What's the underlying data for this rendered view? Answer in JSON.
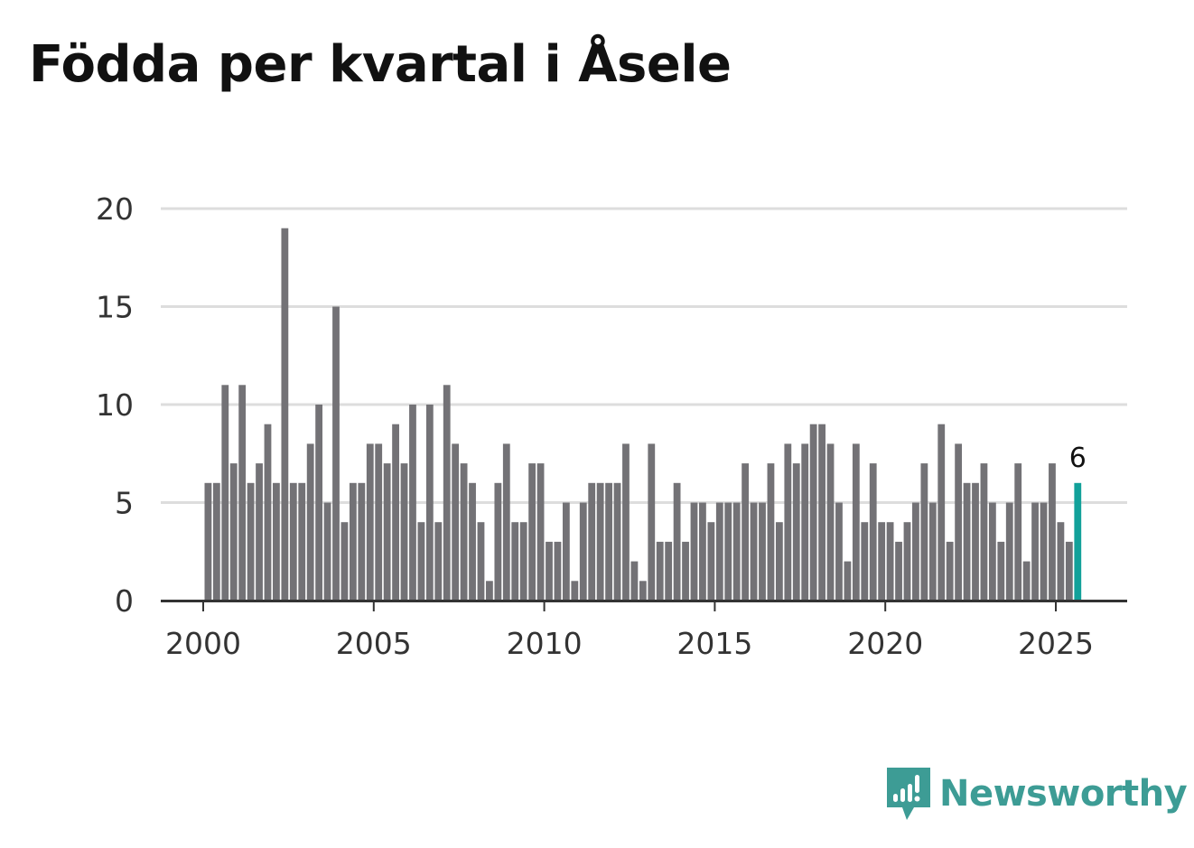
{
  "title": "Födda per kvartal i Åsele",
  "brand": {
    "name": "Newsworthy",
    "icon": "newsworthy-logo-icon",
    "color": "#3d9c95"
  },
  "colors": {
    "bar": "#737276",
    "highlight": "#12a19a",
    "grid": "#dddddd",
    "axis": "#333333"
  },
  "chart_data": {
    "type": "bar",
    "title": "Födda per kvartal i Åsele",
    "xlabel": "",
    "ylabel": "",
    "ylim": [
      0,
      20
    ],
    "yticks": [
      0,
      5,
      10,
      15,
      20
    ],
    "xticks": [
      "2000",
      "2005",
      "2010",
      "2015",
      "2020",
      "2025"
    ],
    "start": {
      "year": 2000,
      "quarter": 1
    },
    "grid": true,
    "series": [
      {
        "name": "Födda",
        "values": [
          6,
          6,
          11,
          7,
          11,
          6,
          7,
          9,
          6,
          19,
          6,
          6,
          8,
          10,
          5,
          15,
          4,
          6,
          6,
          8,
          8,
          7,
          9,
          7,
          10,
          4,
          10,
          4,
          11,
          8,
          7,
          6,
          4,
          1,
          6,
          8,
          4,
          4,
          7,
          7,
          3,
          3,
          5,
          1,
          5,
          6,
          6,
          6,
          6,
          8,
          2,
          1,
          8,
          3,
          3,
          6,
          3,
          5,
          5,
          4,
          5,
          5,
          5,
          7,
          5,
          5,
          7,
          4,
          8,
          7,
          8,
          9,
          9,
          8,
          5,
          2,
          8,
          4,
          7,
          4,
          4,
          3,
          4,
          5,
          7,
          5,
          9,
          3,
          8,
          6,
          6,
          7,
          5,
          3,
          5,
          7,
          2,
          5,
          5,
          7,
          4,
          3,
          6
        ]
      }
    ],
    "annotation": {
      "label": "6",
      "index": "last"
    }
  }
}
